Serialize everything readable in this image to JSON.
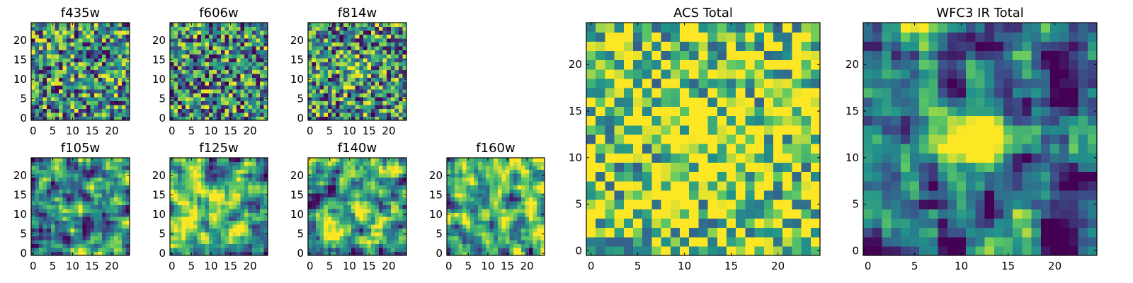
{
  "figure": {
    "colormap": "viridis",
    "colormap_stops": [
      "#440154",
      "#3b528b",
      "#21918c",
      "#5ec962",
      "#fde725"
    ]
  },
  "chart_data": [
    {
      "type": "heatmap",
      "title": "f435w",
      "rows": 25,
      "cols": 25,
      "seed": 11,
      "blur": 0,
      "bias": 0.0,
      "center": 0.0,
      "xticks": [
        "0",
        "5",
        "10",
        "15",
        "20"
      ],
      "yticks": [
        "0",
        "5",
        "10",
        "15",
        "20"
      ]
    },
    {
      "type": "heatmap",
      "title": "f606w",
      "rows": 25,
      "cols": 25,
      "seed": 23,
      "blur": 0,
      "bias": 0.0,
      "center": 0.0,
      "xticks": [
        "0",
        "5",
        "10",
        "15",
        "20"
      ],
      "yticks": [
        "0",
        "5",
        "10",
        "15",
        "20"
      ]
    },
    {
      "type": "heatmap",
      "title": "f814w",
      "rows": 25,
      "cols": 25,
      "seed": 37,
      "blur": 0,
      "bias": 0.0,
      "center": 0.35,
      "xticks": [
        "0",
        "5",
        "10",
        "15",
        "20"
      ],
      "yticks": [
        "0",
        "5",
        "10",
        "15",
        "20"
      ]
    },
    {
      "type": "heatmap",
      "title": "f105w",
      "rows": 25,
      "cols": 25,
      "seed": 41,
      "blur": 1,
      "bias": 0.05,
      "center": 0.2,
      "xticks": [
        "0",
        "5",
        "10",
        "15",
        "20"
      ],
      "yticks": [
        "0",
        "5",
        "10",
        "15",
        "20"
      ]
    },
    {
      "type": "heatmap",
      "title": "f125w",
      "rows": 25,
      "cols": 25,
      "seed": 53,
      "blur": 1,
      "bias": 0.1,
      "center": 0.2,
      "xticks": [
        "0",
        "5",
        "10",
        "15",
        "20"
      ],
      "yticks": [
        "0",
        "5",
        "10",
        "15",
        "20"
      ]
    },
    {
      "type": "heatmap",
      "title": "f140w",
      "rows": 25,
      "cols": 25,
      "seed": 67,
      "blur": 1,
      "bias": 0.05,
      "center": 0.2,
      "xticks": [
        "0",
        "5",
        "10",
        "15",
        "20"
      ],
      "yticks": [
        "0",
        "5",
        "10",
        "15",
        "20"
      ]
    },
    {
      "type": "heatmap",
      "title": "f160w",
      "rows": 25,
      "cols": 25,
      "seed": 79,
      "blur": 1,
      "bias": 0.1,
      "center": 0.1,
      "xticks": [
        "0",
        "5",
        "10",
        "15",
        "20"
      ],
      "yticks": [
        "0",
        "5",
        "10",
        "15",
        "20"
      ]
    },
    {
      "type": "heatmap",
      "title": "ACS Total",
      "rows": 25,
      "cols": 25,
      "seed": 97,
      "blur": 0,
      "bias": 0.3,
      "center": 0.25,
      "xticks": [
        "0",
        "5",
        "10",
        "15",
        "20"
      ],
      "yticks": [
        "0",
        "5",
        "10",
        "15",
        "20"
      ]
    },
    {
      "type": "heatmap",
      "title": "WFC3 IR Total",
      "rows": 25,
      "cols": 25,
      "seed": 131,
      "blur": 1,
      "bias": -0.15,
      "center": 1.6,
      "xticks": [
        "0",
        "5",
        "10",
        "15",
        "20"
      ],
      "yticks": [
        "0",
        "5",
        "10",
        "15",
        "20"
      ]
    }
  ]
}
